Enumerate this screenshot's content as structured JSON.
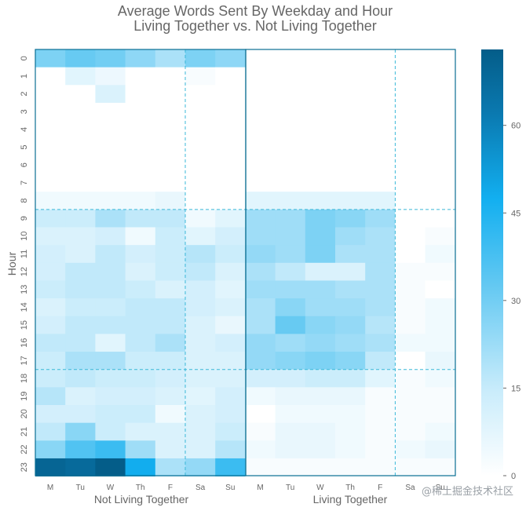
{
  "chart_data": {
    "type": "heatmap",
    "title": [
      "Average Words Sent By Weekday and Hour",
      "Living Together vs. Not Living Together"
    ],
    "ylabel": "Hour",
    "groups": [
      "Not Living Together",
      "Living Together"
    ],
    "day_labels": [
      "M",
      "Tu",
      "W",
      "Th",
      "F",
      "Sa",
      "Su"
    ],
    "hours": [
      "0",
      "1",
      "2",
      "3",
      "4",
      "5",
      "6",
      "7",
      "8",
      "9",
      "10",
      "11",
      "12",
      "13",
      "14",
      "15",
      "16",
      "17",
      "18",
      "19",
      "20",
      "21",
      "22",
      "23"
    ],
    "colorbar": {
      "range": [
        0,
        73
      ],
      "ticks": [
        "0",
        "15",
        "30",
        "45",
        "60"
      ]
    },
    "values": [
      [
        28,
        32,
        30,
        25,
        20,
        28,
        25,
        0,
        0,
        0,
        0,
        0,
        0,
        0
      ],
      [
        0,
        8,
        5,
        0,
        0,
        2,
        0,
        0,
        0,
        0,
        0,
        0,
        0,
        0
      ],
      [
        0,
        0,
        10,
        0,
        0,
        0,
        0,
        0,
        0,
        0,
        0,
        0,
        0,
        0
      ],
      [
        0,
        0,
        0,
        0,
        0,
        0,
        0,
        0,
        0,
        0,
        0,
        0,
        0,
        0
      ],
      [
        0,
        0,
        0,
        0,
        0,
        0,
        0,
        0,
        0,
        0,
        0,
        0,
        0,
        0
      ],
      [
        0,
        0,
        0,
        0,
        0,
        0,
        0,
        0,
        0,
        0,
        0,
        0,
        0,
        0
      ],
      [
        0,
        0,
        0,
        0,
        0,
        0,
        0,
        0,
        0,
        0,
        0,
        0,
        0,
        0
      ],
      [
        0,
        0,
        0,
        0,
        0,
        0,
        0,
        0,
        0,
        0,
        0,
        0,
        0,
        0
      ],
      [
        4,
        4,
        4,
        4,
        6,
        0,
        0,
        8,
        8,
        8,
        8,
        8,
        0,
        0
      ],
      [
        14,
        14,
        20,
        16,
        16,
        4,
        8,
        22,
        22,
        28,
        26,
        22,
        0,
        0
      ],
      [
        10,
        10,
        12,
        4,
        14,
        8,
        12,
        22,
        22,
        28,
        22,
        20,
        0,
        2
      ],
      [
        12,
        10,
        16,
        12,
        14,
        18,
        14,
        24,
        22,
        28,
        20,
        20,
        0,
        4
      ],
      [
        12,
        16,
        16,
        10,
        14,
        16,
        10,
        20,
        16,
        10,
        10,
        20,
        2,
        2
      ],
      [
        14,
        16,
        16,
        14,
        10,
        12,
        8,
        22,
        22,
        22,
        20,
        20,
        2,
        0
      ],
      [
        10,
        14,
        14,
        16,
        16,
        12,
        10,
        20,
        26,
        22,
        22,
        20,
        2,
        4
      ],
      [
        12,
        16,
        16,
        16,
        16,
        10,
        6,
        20,
        32,
        26,
        24,
        18,
        2,
        4
      ],
      [
        16,
        16,
        8,
        16,
        20,
        10,
        12,
        24,
        22,
        24,
        22,
        20,
        4,
        4
      ],
      [
        14,
        20,
        20,
        14,
        14,
        10,
        10,
        24,
        26,
        28,
        26,
        16,
        0,
        6
      ],
      [
        14,
        16,
        14,
        14,
        12,
        10,
        10,
        12,
        12,
        14,
        14,
        8,
        2,
        4
      ],
      [
        18,
        10,
        12,
        12,
        10,
        8,
        12,
        4,
        6,
        6,
        6,
        2,
        2,
        2
      ],
      [
        12,
        12,
        14,
        14,
        4,
        10,
        12,
        0,
        4,
        4,
        4,
        2,
        2,
        2
      ],
      [
        16,
        26,
        14,
        10,
        10,
        10,
        14,
        2,
        6,
        6,
        4,
        2,
        2,
        4
      ],
      [
        26,
        36,
        40,
        22,
        10,
        10,
        18,
        4,
        6,
        6,
        4,
        2,
        4,
        6
      ],
      [
        70,
        68,
        73,
        48,
        20,
        24,
        40,
        2,
        2,
        2,
        2,
        2,
        2,
        2
      ]
    ]
  },
  "watermark": "@稀土掘金技术社区"
}
